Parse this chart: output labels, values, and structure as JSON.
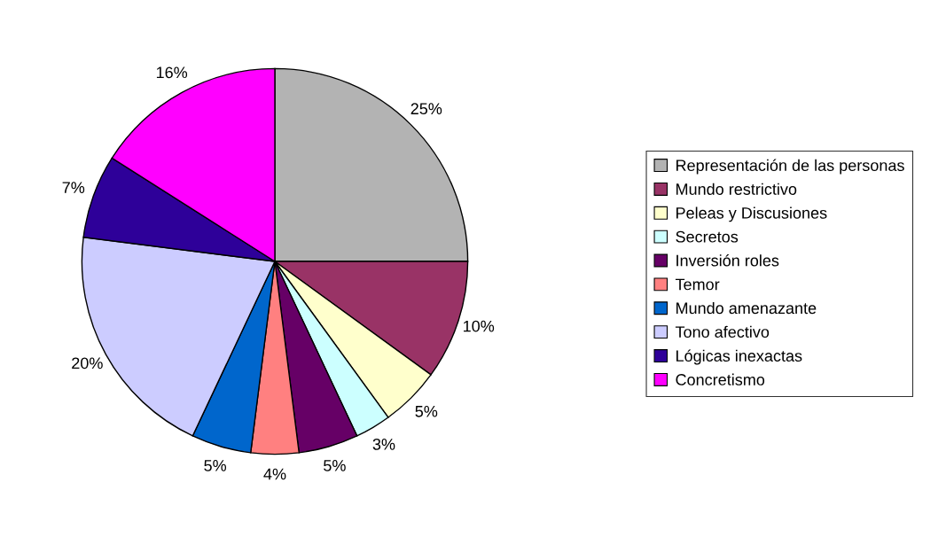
{
  "chart_data": {
    "type": "pie",
    "categories": [
      "Representación de las personas",
      "Mundo restrictivo",
      "Peleas y Discusiones",
      "Secretos",
      "Inversión roles",
      "Temor",
      "Mundo amenazante",
      "Tono afectivo",
      "Lógicas inexactas",
      "Concretismo"
    ],
    "values": [
      25,
      10,
      5,
      3,
      5,
      4,
      5,
      20,
      7,
      16
    ],
    "value_labels": [
      "25%",
      "10%",
      "5%",
      "3%",
      "5%",
      "4%",
      "5%",
      "20%",
      "7%",
      "16%"
    ],
    "colors": [
      "#b3b3b3",
      "#993366",
      "#ffffcc",
      "#ccffff",
      "#660066",
      "#ff8080",
      "#0066cc",
      "#ccccff",
      "#2e0099",
      "#ff00ff"
    ],
    "legend": "right"
  }
}
